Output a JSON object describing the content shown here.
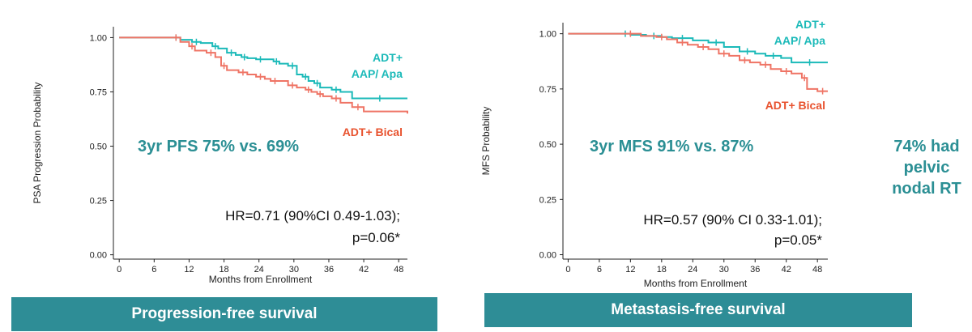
{
  "colors": {
    "teal": "#1cbab9",
    "salmon": "#ef7465",
    "stat_teal": "#2b8f94",
    "banner": "#2e8d96",
    "bical_label": "#e8522e"
  },
  "side_note": [
    "74% had",
    "pelvic",
    "nodal RT"
  ],
  "chart_data": [
    {
      "type": "line",
      "subtype": "kaplan-meier",
      "ylabel": "PSA Progression Probability",
      "xlabel": "Months from Enrollment",
      "xlim": [
        -1,
        49.5
      ],
      "ylim": [
        -0.02,
        1.05
      ],
      "x_ticks": [
        0,
        6,
        12,
        18,
        24,
        30,
        36,
        42,
        48
      ],
      "y_ticks": [
        0.0,
        0.25,
        0.5,
        0.75,
        1.0
      ],
      "y_tick_labels": [
        "0.00",
        "0.25",
        "0.50",
        "0.75",
        "1.00"
      ],
      "stat_text": "3yr PFS 75% vs. 69%",
      "hr_line1": "HR=0.71 (90%CI 0.49-1.03);",
      "hr_line2": "p=0.06*",
      "banner": "Progression-free survival",
      "series": [
        {
          "name": "ADT+ AAP/ Apa",
          "label_lines": [
            "ADT+",
            "AAP/ Apa"
          ],
          "color": "#1cbab9",
          "x": [
            0,
            9,
            10.5,
            12.5,
            14,
            16,
            17,
            18.5,
            20,
            21,
            22,
            23.5,
            25,
            26.5,
            27.5,
            29,
            30.5,
            31.5,
            32.5,
            33.5,
            34.5,
            36.5,
            38,
            40,
            49.5
          ],
          "y": [
            1.0,
            1.0,
            0.99,
            0.98,
            0.975,
            0.96,
            0.95,
            0.93,
            0.92,
            0.91,
            0.905,
            0.9,
            0.9,
            0.89,
            0.88,
            0.87,
            0.83,
            0.82,
            0.8,
            0.79,
            0.77,
            0.76,
            0.75,
            0.72,
            0.72
          ]
        },
        {
          "name": "ADT+ Bical",
          "label_lines": [
            "ADT+ Bical"
          ],
          "color": "#ef7465",
          "x": [
            0,
            9,
            10.5,
            12,
            13,
            15,
            16.5,
            17.5,
            18.5,
            20.5,
            22,
            23.5,
            25,
            26,
            27.5,
            29,
            30.5,
            32,
            33,
            34,
            35,
            36.5,
            38,
            40,
            42,
            49.5
          ],
          "y": [
            1.0,
            1.0,
            0.98,
            0.96,
            0.94,
            0.93,
            0.91,
            0.87,
            0.85,
            0.84,
            0.83,
            0.82,
            0.81,
            0.8,
            0.8,
            0.78,
            0.77,
            0.76,
            0.75,
            0.74,
            0.73,
            0.72,
            0.7,
            0.68,
            0.66,
            0.65
          ]
        }
      ]
    },
    {
      "type": "line",
      "subtype": "kaplan-meier",
      "ylabel": "MFS Probability",
      "xlabel": "Months from Enrollment",
      "xlim": [
        -1,
        50
      ],
      "ylim": [
        -0.02,
        1.05
      ],
      "x_ticks": [
        0,
        6,
        12,
        18,
        24,
        30,
        36,
        42,
        48
      ],
      "y_ticks": [
        0.0,
        0.25,
        0.5,
        0.75,
        1.0
      ],
      "y_tick_labels": [
        "0.00",
        "0.25",
        "0.50",
        "0.75",
        "1.00"
      ],
      "stat_text": "3yr MFS 91% vs. 87%",
      "hr_line1": "HR=0.57 (90% CI 0.33-1.01);",
      "hr_line2": "p=0.05*",
      "banner": "Metastasis-free survival",
      "series": [
        {
          "name": "ADT+ AAP/ Apa",
          "label_lines": [
            "ADT+",
            "AAP/ Apa"
          ],
          "color": "#1cbab9",
          "x": [
            0,
            10,
            12,
            15,
            18,
            20,
            24,
            27,
            30,
            33,
            36,
            38,
            41,
            43,
            50
          ],
          "y": [
            1.0,
            1.0,
            0.995,
            0.99,
            0.985,
            0.98,
            0.97,
            0.96,
            0.94,
            0.92,
            0.91,
            0.9,
            0.89,
            0.87,
            0.87
          ]
        },
        {
          "name": "ADT+ Bical",
          "label_lines": [
            "ADT+ Bical"
          ],
          "color": "#ef7465",
          "x": [
            0,
            10,
            14,
            17,
            19,
            21,
            23,
            25,
            27,
            29,
            31,
            33,
            35,
            37,
            39,
            41,
            43,
            45,
            46,
            48,
            50
          ],
          "y": [
            1.0,
            1.0,
            0.99,
            0.985,
            0.975,
            0.96,
            0.95,
            0.94,
            0.93,
            0.91,
            0.9,
            0.88,
            0.87,
            0.86,
            0.84,
            0.83,
            0.82,
            0.8,
            0.75,
            0.74,
            0.74
          ]
        }
      ]
    }
  ]
}
